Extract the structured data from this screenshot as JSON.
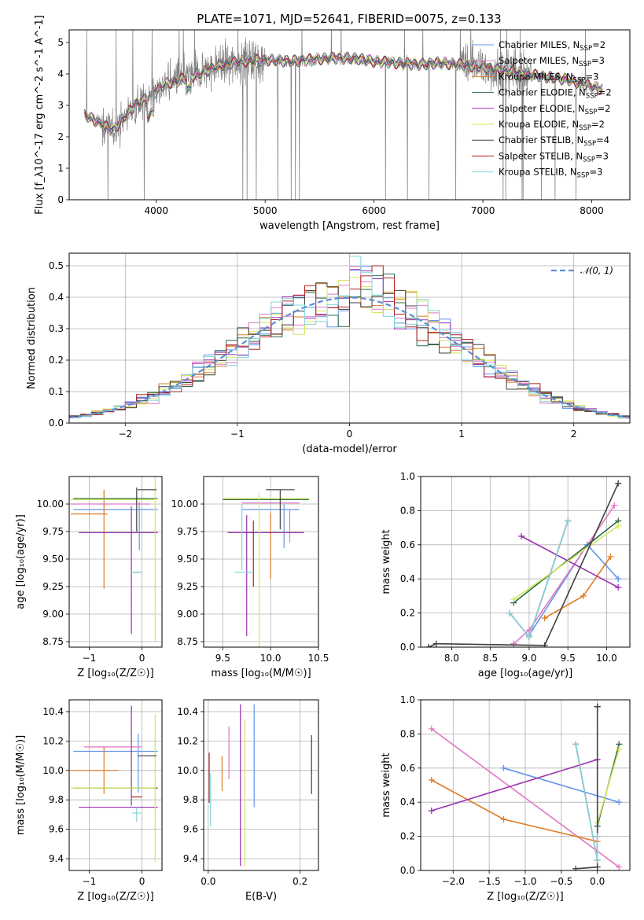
{
  "figure_title": "PLATE=1071, MJD=52641, FIBERID=0075, z=0.133",
  "colors": {
    "Chabrier MILES": "#6495ed",
    "Salpeter MILES": "#e377c2",
    "Kroupa MILES": "#e07b22",
    "Chabrier ELODIE": "#2e6b4a",
    "Salpeter ELODIE": "#9b30b0",
    "Kroupa ELODIE": "#d4e85a",
    "Chabrier STELIB": "#404040",
    "Salpeter STELIB": "#b22222",
    "Kroupa STELIB": "#7fd4d8",
    "normal": "#5b8fd6"
  },
  "chart_data": [
    {
      "id": "spectrum",
      "type": "line",
      "xlabel": "wavelength [Angstrom, rest frame]",
      "ylabel": "Flux [f_λ10^-17 erg cm^-2 s^-1 A^-1]",
      "xlim": [
        3200,
        8350
      ],
      "ylim": [
        0,
        5.4
      ],
      "xticks": [
        4000,
        5000,
        6000,
        7000,
        8000
      ],
      "yticks": [
        0,
        1,
        2,
        3,
        4,
        5
      ],
      "legend_position": "right",
      "legend": [
        {
          "name": "Chabrier MILES",
          "nssp": "2"
        },
        {
          "name": "Salpeter MILES",
          "nssp": "3"
        },
        {
          "name": "Kroupa MILES",
          "nssp": "3"
        },
        {
          "name": "Chabrier ELODIE",
          "nssp": "2"
        },
        {
          "name": "Salpeter ELODIE",
          "nssp": "2"
        },
        {
          "name": "Kroupa ELODIE",
          "nssp": "2"
        },
        {
          "name": "Chabrier STELIB",
          "nssp": "4"
        },
        {
          "name": "Salpeter STELIB",
          "nssp": "3"
        },
        {
          "name": "Kroupa STELIB",
          "nssp": "3"
        }
      ],
      "data_series": {
        "name": "data",
        "color": "#808080"
      },
      "continuum_points": [
        [
          3340,
          2.7
        ],
        [
          3450,
          2.5
        ],
        [
          3600,
          2.2
        ],
        [
          3700,
          2.6
        ],
        [
          3800,
          3.0
        ],
        [
          3900,
          3.2
        ],
        [
          4000,
          3.45
        ],
        [
          4100,
          3.7
        ],
        [
          4200,
          3.8
        ],
        [
          4400,
          4.0
        ],
        [
          4600,
          4.3
        ],
        [
          4800,
          4.4
        ],
        [
          5000,
          4.45
        ],
        [
          5200,
          4.4
        ],
        [
          5400,
          4.45
        ],
        [
          5600,
          4.5
        ],
        [
          5800,
          4.5
        ],
        [
          6000,
          4.4
        ],
        [
          6200,
          4.35
        ],
        [
          6400,
          4.3
        ],
        [
          6600,
          4.35
        ],
        [
          6800,
          4.3
        ],
        [
          7000,
          4.2
        ],
        [
          7200,
          4.1
        ],
        [
          7400,
          4.0
        ],
        [
          7600,
          3.9
        ],
        [
          7800,
          3.8
        ],
        [
          8000,
          3.6
        ],
        [
          8100,
          3.5
        ]
      ]
    },
    {
      "id": "residuals",
      "type": "histogram",
      "xlabel": "(data-model)/error",
      "ylabel": "Normed distribution",
      "xlim": [
        -2.5,
        2.5
      ],
      "ylim": [
        0,
        0.54
      ],
      "xticks": [
        -2,
        -1,
        0,
        1,
        2
      ],
      "yticks": [
        0.0,
        0.1,
        0.2,
        0.3,
        0.4,
        0.5
      ],
      "grid": true,
      "bin_width": 0.1,
      "legend": [
        {
          "name": "N(0, 1)",
          "label": "𝒩(0, 1)"
        }
      ],
      "legend_position": "top-right"
    },
    {
      "id": "age_vs_Z",
      "type": "errorbar",
      "xlabel": "Z [log₁₀(Z/Z☉)]",
      "ylabel": "age  [log₁₀(age/yr)]",
      "xlim": [
        -1.38,
        0.38
      ],
      "ylim": [
        8.7,
        10.25
      ],
      "xticks": [
        -1,
        0
      ],
      "yticks": [
        8.75,
        9.0,
        9.25,
        9.5,
        9.75,
        10.0
      ],
      "grid": true,
      "points": [
        {
          "series": "Chabrier MILES",
          "x": -0.5,
          "xerr": 0.8,
          "y": 9.95,
          "yerr": 0.0
        },
        {
          "series": "Chabrier MILES",
          "x": -0.05,
          "xerr": 0.0,
          "y": 9.8,
          "yerr": 0.22
        },
        {
          "series": "Salpeter MILES",
          "x": -0.6,
          "xerr": 0.75,
          "y": 10.0,
          "yerr": 0.0
        },
        {
          "series": "Kroupa MILES",
          "x": -0.72,
          "xerr": 0.0,
          "y": 9.68,
          "yerr": 0.45
        },
        {
          "series": "Kroupa MILES",
          "x": -1.0,
          "xerr": 0.35,
          "y": 9.91,
          "yerr": 0.0
        },
        {
          "series": "Chabrier ELODIE",
          "x": -0.5,
          "xerr": 0.8,
          "y": 10.05,
          "yerr": 0.0
        },
        {
          "series": "Salpeter ELODIE",
          "x": -0.2,
          "xerr": 0.0,
          "y": 9.4,
          "yerr": 0.58
        },
        {
          "series": "Salpeter ELODIE",
          "x": -0.45,
          "xerr": 0.75,
          "y": 9.74,
          "yerr": 0.0
        },
        {
          "series": "Kroupa ELODIE",
          "x": 0.25,
          "xerr": 0.0,
          "y": 9.5,
          "yerr": 0.75
        },
        {
          "series": "Kroupa ELODIE",
          "x": -0.55,
          "xerr": 0.8,
          "y": 10.04,
          "yerr": 0.0
        },
        {
          "series": "Chabrier STELIB",
          "x": 0.1,
          "xerr": 0.18,
          "y": 10.13,
          "yerr": 0.0
        },
        {
          "series": "Chabrier STELIB",
          "x": -0.1,
          "xerr": 0.0,
          "y": 9.95,
          "yerr": 0.2
        },
        {
          "series": "Salpeter STELIB",
          "x": -0.1,
          "xerr": 0.05,
          "y": 9.38,
          "yerr": 0.0
        },
        {
          "series": "Kroupa STELIB",
          "x": -0.1,
          "xerr": 0.1,
          "y": 9.38,
          "yerr": 0.0
        }
      ]
    },
    {
      "id": "age_vs_mass",
      "type": "errorbar",
      "xlabel": "mass [log₁₀(M/M☉)]",
      "ylabel": "",
      "xlim": [
        9.3,
        10.5
      ],
      "ylim": [
        8.7,
        10.25
      ],
      "xticks": [
        9.5,
        10.0,
        10.5
      ],
      "yticks": [
        8.75,
        9.0,
        9.25,
        9.5,
        9.75,
        10.0
      ],
      "grid": true,
      "points": [
        {
          "series": "Chabrier MILES",
          "x": 10.0,
          "xerr": 0.3,
          "y": 9.95,
          "yerr": 0.0
        },
        {
          "series": "Chabrier MILES",
          "x": 10.14,
          "xerr": 0.0,
          "y": 9.8,
          "yerr": 0.2
        },
        {
          "series": "Salpeter MILES",
          "x": 10.0,
          "xerr": 0.3,
          "y": 10.01,
          "yerr": 0.0
        },
        {
          "series": "Salpeter MILES",
          "x": 10.2,
          "xerr": 0.0,
          "y": 9.8,
          "yerr": 0.15
        },
        {
          "series": "Kroupa MILES",
          "x": 10.0,
          "xerr": 0.0,
          "y": 9.62,
          "yerr": 0.3
        },
        {
          "series": "Chabrier ELODIE",
          "x": 9.95,
          "xerr": 0.45,
          "y": 10.04,
          "yerr": 0.0
        },
        {
          "series": "Salpeter ELODIE",
          "x": 9.75,
          "xerr": 0.0,
          "y": 9.35,
          "yerr": 0.55
        },
        {
          "series": "Salpeter ELODIE",
          "x": 9.95,
          "xerr": 0.4,
          "y": 9.74,
          "yerr": 0.0
        },
        {
          "series": "Kroupa ELODIE",
          "x": 9.88,
          "xerr": 0.0,
          "y": 9.4,
          "yerr": 0.7
        },
        {
          "series": "Kroupa ELODIE",
          "x": 9.95,
          "xerr": 0.45,
          "y": 10.05,
          "yerr": 0.0
        },
        {
          "series": "Chabrier STELIB",
          "x": 10.1,
          "xerr": 0.15,
          "y": 10.13,
          "yerr": 0.0
        },
        {
          "series": "Chabrier STELIB",
          "x": 10.1,
          "xerr": 0.0,
          "y": 9.95,
          "yerr": 0.18
        },
        {
          "series": "Salpeter STELIB",
          "x": 9.82,
          "xerr": 0.0,
          "y": 9.55,
          "yerr": 0.3
        },
        {
          "series": "Kroupa STELIB",
          "x": 9.7,
          "xerr": 0.0,
          "y": 9.7,
          "yerr": 0.3
        },
        {
          "series": "Kroupa STELIB",
          "x": 9.72,
          "xerr": 0.1,
          "y": 9.38,
          "yerr": 0.0
        }
      ]
    },
    {
      "id": "massweight_vs_age",
      "type": "line",
      "xlabel": "age  [log₁₀(age/yr)]",
      "ylabel": "mass weight",
      "xlim": [
        7.6,
        10.3
      ],
      "ylim": [
        0,
        1.0
      ],
      "xticks": [
        8.0,
        8.5,
        9.0,
        9.5,
        10.0
      ],
      "yticks": [
        0.0,
        0.2,
        0.4,
        0.6,
        0.8,
        1.0
      ],
      "grid": true,
      "series": [
        {
          "name": "Chabrier MILES",
          "x": [
            9.0,
            9.75,
            10.15
          ],
          "y": [
            0.07,
            0.6,
            0.4
          ]
        },
        {
          "name": "Salpeter MILES",
          "x": [
            8.8,
            9.0,
            10.1
          ],
          "y": [
            0.02,
            0.1,
            0.83
          ]
        },
        {
          "name": "Kroupa MILES",
          "x": [
            9.2,
            9.7,
            10.05
          ],
          "y": [
            0.17,
            0.3,
            0.53
          ]
        },
        {
          "name": "Chabrier ELODIE",
          "x": [
            8.8,
            10.15
          ],
          "y": [
            0.26,
            0.74
          ]
        },
        {
          "name": "Salpeter ELODIE",
          "x": [
            8.9,
            10.15
          ],
          "y": [
            0.65,
            0.35
          ]
        },
        {
          "name": "Kroupa ELODIE",
          "x": [
            8.8,
            10.15
          ],
          "y": [
            0.28,
            0.71
          ]
        },
        {
          "name": "Chabrier STELIB",
          "x": [
            7.7,
            7.8,
            9.2,
            10.15
          ],
          "y": [
            0.0,
            0.02,
            0.01,
            0.96
          ]
        },
        {
          "name": "Salpeter STELIB",
          "x": [
            8.75,
            9.0,
            9.5
          ],
          "y": [
            0.2,
            0.06,
            0.74
          ]
        },
        {
          "name": "Kroupa STELIB",
          "x": [
            8.75,
            9.0,
            9.5
          ],
          "y": [
            0.2,
            0.06,
            0.74
          ]
        }
      ]
    },
    {
      "id": "mass_vs_Z",
      "type": "errorbar",
      "xlabel": "Z [log₁₀(Z/Z☉)]",
      "ylabel": "mass [log₁₀(M/M☉)]",
      "xlim": [
        -1.38,
        0.38
      ],
      "ylim": [
        9.32,
        10.48
      ],
      "xticks": [
        -1,
        0
      ],
      "yticks": [
        9.4,
        9.6,
        9.8,
        10.0,
        10.2,
        10.4
      ],
      "grid": true,
      "points": [
        {
          "series": "Chabrier MILES",
          "x": -0.5,
          "xerr": 0.8,
          "y": 10.13,
          "yerr": 0.0
        },
        {
          "series": "Chabrier MILES",
          "x": -0.07,
          "xerr": 0.0,
          "y": 10.05,
          "yerr": 0.2
        },
        {
          "series": "Salpeter MILES",
          "x": -0.55,
          "xerr": 0.55,
          "y": 10.16,
          "yerr": 0.0
        },
        {
          "series": "Kroupa MILES",
          "x": -0.72,
          "xerr": 0.0,
          "y": 10.0,
          "yerr": 0.16
        },
        {
          "series": "Kroupa MILES",
          "x": -1.0,
          "xerr": 0.55,
          "y": 10.0,
          "yerr": 0.0
        },
        {
          "series": "Chabrier ELODIE",
          "x": -0.5,
          "xerr": 0.8,
          "y": 9.88,
          "yerr": 0.0
        },
        {
          "series": "Salpeter ELODIE",
          "x": -0.2,
          "xerr": 0.0,
          "y": 10.1,
          "yerr": 0.34
        },
        {
          "series": "Salpeter ELODIE",
          "x": -0.45,
          "xerr": 0.75,
          "y": 9.75,
          "yerr": 0.0
        },
        {
          "series": "Kroupa ELODIE",
          "x": 0.25,
          "xerr": 0.0,
          "y": 9.88,
          "yerr": 0.5
        },
        {
          "series": "Kroupa ELODIE",
          "x": -0.55,
          "xerr": 0.8,
          "y": 9.88,
          "yerr": 0.0
        },
        {
          "series": "Chabrier STELIB",
          "x": 0.1,
          "xerr": 0.18,
          "y": 10.1,
          "yerr": 0.0
        },
        {
          "series": "Salpeter STELIB",
          "x": -0.1,
          "xerr": 0.1,
          "y": 9.82,
          "yerr": 0.0
        },
        {
          "series": "Kroupa STELIB",
          "x": -0.1,
          "xerr": 0.0,
          "y": 9.7,
          "yerr": 0.05
        },
        {
          "series": "Kroupa STELIB",
          "x": -0.1,
          "xerr": 0.08,
          "y": 9.71,
          "yerr": 0.0
        }
      ]
    },
    {
      "id": "mass_vs_ebv",
      "type": "errorbar",
      "xlabel": "E(B-V)",
      "ylabel": "",
      "xlim": [
        -0.01,
        0.24
      ],
      "ylim": [
        9.32,
        10.48
      ],
      "xticks": [
        0.0,
        0.2
      ],
      "yticks": [
        9.4,
        9.6,
        9.8,
        10.0,
        10.2,
        10.4
      ],
      "grid": true,
      "points": [
        {
          "series": "Salpeter STELIB",
          "x": 0.002,
          "xerr": 0.0,
          "y": 9.95,
          "yerr": 0.17
        },
        {
          "series": "Kroupa STELIB",
          "x": 0.005,
          "xerr": 0.0,
          "y": 9.8,
          "yerr": 0.18
        },
        {
          "series": "Kroupa MILES",
          "x": 0.03,
          "xerr": 0.0,
          "y": 9.98,
          "yerr": 0.12
        },
        {
          "series": "Salpeter MILES",
          "x": 0.045,
          "xerr": 0.0,
          "y": 10.12,
          "yerr": 0.18
        },
        {
          "series": "Salpeter ELODIE",
          "x": 0.07,
          "xerr": 0.0,
          "y": 9.9,
          "yerr": 0.55
        },
        {
          "series": "Kroupa ELODIE",
          "x": 0.08,
          "xerr": 0.0,
          "y": 9.85,
          "yerr": 0.5
        },
        {
          "series": "Chabrier MILES",
          "x": 0.1,
          "xerr": 0.0,
          "y": 10.1,
          "yerr": 0.35
        },
        {
          "series": "Chabrier STELIB",
          "x": 0.225,
          "xerr": 0.0,
          "y": 10.04,
          "yerr": 0.2
        }
      ]
    },
    {
      "id": "massweight_vs_Z",
      "type": "line",
      "xlabel": "Z [log₁₀(Z/Z☉)]",
      "ylabel": "mass weight",
      "xlim": [
        -2.45,
        0.45
      ],
      "ylim": [
        0,
        1.0
      ],
      "xticks": [
        -2.0,
        -1.5,
        -1.0,
        -0.5,
        0.0
      ],
      "yticks": [
        0.0,
        0.2,
        0.4,
        0.6,
        0.8,
        1.0
      ],
      "grid": true,
      "series": [
        {
          "name": "Chabrier MILES",
          "x": [
            -1.3,
            0.3
          ],
          "y": [
            0.6,
            0.4
          ]
        },
        {
          "name": "Salpeter MILES",
          "x": [
            -2.3,
            0.3
          ],
          "y": [
            0.83,
            0.02
          ]
        },
        {
          "name": "Kroupa MILES",
          "x": [
            -2.3,
            -1.3,
            0.0
          ],
          "y": [
            0.53,
            0.3,
            0.17
          ]
        },
        {
          "name": "Chabrier ELODIE",
          "x": [
            0.0,
            0.3
          ],
          "y": [
            0.26,
            0.74
          ]
        },
        {
          "name": "Salpeter ELODIE",
          "x": [
            -2.3,
            0.0
          ],
          "y": [
            0.35,
            0.65
          ]
        },
        {
          "name": "Kroupa ELODIE",
          "x": [
            0.0,
            0.3
          ],
          "y": [
            0.28,
            0.71
          ]
        },
        {
          "name": "Chabrier STELIB",
          "x": [
            -0.3,
            0.0,
            0.0,
            0.0
          ],
          "y": [
            0.01,
            0.02,
            0.96,
            0.96
          ]
        },
        {
          "name": "Salpeter STELIB",
          "x": [
            -0.3,
            0.0,
            0.0
          ],
          "y": [
            0.74,
            0.06,
            0.2
          ]
        },
        {
          "name": "Kroupa STELIB",
          "x": [
            -0.3,
            0.0,
            0.0
          ],
          "y": [
            0.74,
            0.06,
            0.2
          ]
        }
      ]
    }
  ]
}
